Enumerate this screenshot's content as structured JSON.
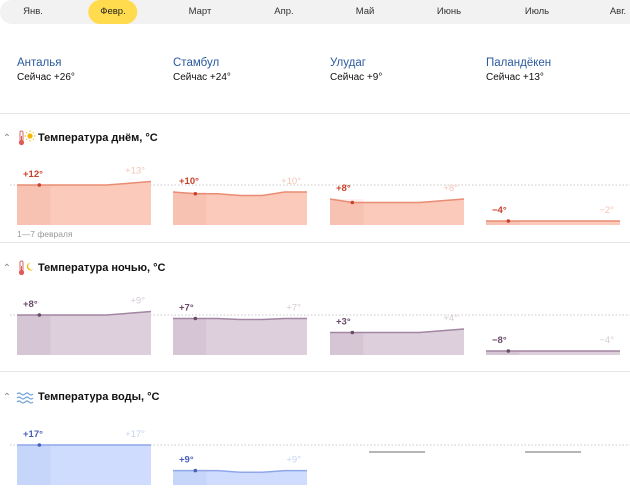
{
  "months": [
    "Янв.",
    "Февр.",
    "Март",
    "Апр.",
    "Май",
    "Июнь",
    "Июль",
    "Авг."
  ],
  "active_month": 1,
  "cities": [
    {
      "name": "Анталья",
      "now": "Сейчас +26°"
    },
    {
      "name": "Стамбул",
      "now": "Сейчас +24°"
    },
    {
      "name": "Улудаг",
      "now": "Сейчас +9°"
    },
    {
      "name": "Паландёкен",
      "now": "Сейчас +13°"
    }
  ],
  "sections": [
    {
      "id": "day",
      "title": "Температура днём, °C",
      "icon": "thermometer-sun-icon",
      "caption": "1—7 февраля"
    },
    {
      "id": "night",
      "title": "Температура ночью, °C",
      "icon": "thermometer-moon-icon",
      "caption": ""
    },
    {
      "id": "water",
      "title": "Температура воды, °C",
      "icon": "water-waves-icon",
      "caption": ""
    }
  ],
  "colors": {
    "day": {
      "fill": "#fbcabb",
      "line": "#e98c73",
      "label": "#c9412a",
      "label_end": "#f2c5b8"
    },
    "night": {
      "fill": "#ddd0dc",
      "line": "#a285a2",
      "label": "#6a4a68",
      "label_end": "#d6cad5"
    },
    "water": {
      "fill": "#cfdcfd",
      "line": "#8fa6ea",
      "label": "#4a5fb8",
      "label_end": "#c7d3f3"
    }
  },
  "chart_data": [
    {
      "type": "area",
      "title": "Температура днём, °C",
      "series": [
        {
          "name": "Анталья",
          "start": "+12°",
          "end": "+13°",
          "values": [
            12,
            12,
            12,
            12,
            12,
            12.5,
            13
          ]
        },
        {
          "name": "Стамбул",
          "start": "+10°",
          "end": "+10°",
          "values": [
            10,
            9.5,
            9.5,
            9,
            9,
            10,
            10
          ]
        },
        {
          "name": "Улудаг",
          "start": "+8°",
          "end": "+8°",
          "values": [
            8,
            7,
            7,
            7,
            7,
            7.5,
            8
          ]
        },
        {
          "name": "Паландёкен",
          "start": "−4°",
          "end": "−2°",
          "values": [
            -4,
            -3.5,
            -3,
            -3,
            -2.5,
            -2.5,
            -2
          ]
        }
      ]
    },
    {
      "type": "area",
      "title": "Температура ночью, °C",
      "series": [
        {
          "name": "Анталья",
          "start": "+8°",
          "end": "+9°",
          "values": [
            8,
            8,
            8,
            8,
            8,
            8.5,
            9
          ]
        },
        {
          "name": "Стамбул",
          "start": "+7°",
          "end": "+7°",
          "values": [
            7,
            7,
            7,
            6.7,
            6.7,
            7,
            7
          ]
        },
        {
          "name": "Улудаг",
          "start": "+3°",
          "end": "+4°",
          "values": [
            3,
            3,
            3,
            3,
            3,
            3.5,
            4
          ]
        },
        {
          "name": "Паландёкен",
          "start": "−8°",
          "end": "−4°",
          "values": [
            -8,
            -7,
            -6,
            -6,
            -6,
            -5,
            -4
          ]
        }
      ]
    },
    {
      "type": "area",
      "title": "Температура воды, °C",
      "series": [
        {
          "name": "Анталья",
          "start": "+17°",
          "end": "+17°",
          "values": [
            17,
            17,
            17,
            17,
            17,
            17,
            17
          ]
        },
        {
          "name": "Стамбул",
          "start": "+9°",
          "end": "+9°",
          "values": [
            9,
            9,
            9,
            8.5,
            8.5,
            9,
            9
          ]
        },
        {
          "name": "Улудаг",
          "start": "",
          "end": "",
          "values": []
        },
        {
          "name": "Паландёкен",
          "start": "",
          "end": "",
          "values": []
        }
      ]
    }
  ]
}
